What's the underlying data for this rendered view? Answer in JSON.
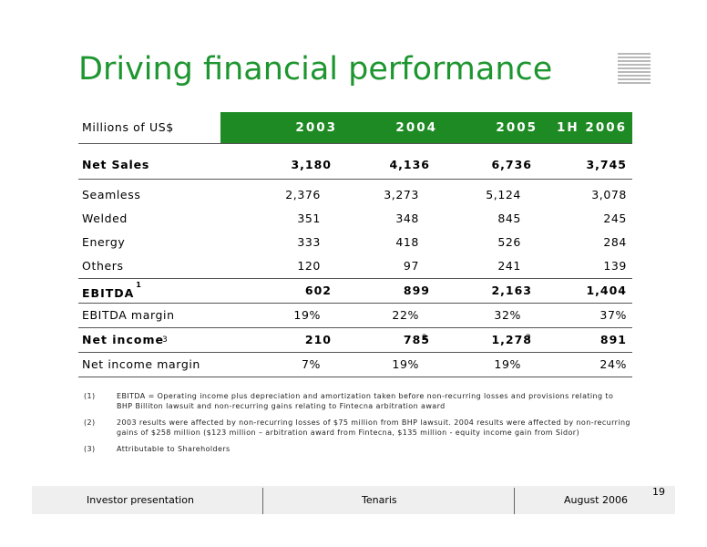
{
  "title": "Driving financial performance",
  "header": {
    "label": "Millions of US$",
    "years": [
      "2003",
      "2004",
      "2005",
      "1H 2006"
    ]
  },
  "net_sales": {
    "label": "Net Sales",
    "values": [
      "3,180",
      "4,136",
      "6,736",
      "3,745"
    ]
  },
  "segments": [
    {
      "label": "Seamless",
      "values": [
        "2,376",
        "3,273",
        "5,124",
        "3,078"
      ]
    },
    {
      "label": "Welded",
      "values": [
        "351",
        "348",
        "845",
        "245"
      ]
    },
    {
      "label": "Energy",
      "values": [
        "333",
        "418",
        "526",
        "284"
      ]
    },
    {
      "label": "Others",
      "values": [
        "120",
        "97",
        "241",
        "139"
      ]
    }
  ],
  "ebitda": {
    "label": "EBITDA",
    "sup": "1",
    "values": [
      "602",
      "899",
      "2,163",
      "1,404"
    ]
  },
  "ebitda_margin": {
    "label": "EBITDA margin",
    "values": [
      "19%",
      "22%",
      "32%",
      "37%"
    ]
  },
  "net_income": {
    "label": "Net income",
    "sup": "3",
    "values": [
      "210",
      "785",
      "1,278",
      "891"
    ],
    "value_sups": [
      "2",
      "2"
    ]
  },
  "net_income_margin": {
    "label": "Net income margin",
    "values": [
      "7%",
      "19%",
      "19%",
      "24%"
    ]
  },
  "notes": [
    {
      "num": "(1)",
      "text": "EBITDA = Operating income plus depreciation and amortization taken before non-recurring losses and provisions relating to BHP Billiton lawsuit and non-recurring gains relating to Fintecna arbitration award"
    },
    {
      "num": "(2)",
      "text": "2003 results were affected by non-recurring losses of $75 million from BHP lawsuit. 2004 results were affected by non-recurring gains of $258 million ($123 million – arbitration award from Fintecna, $135 million - equity income gain from Sidor)"
    },
    {
      "num": "(3)",
      "text": "Attributable to Shareholders"
    }
  ],
  "footer": {
    "left": "Investor presentation",
    "center": "Tenaris",
    "right": "August 2006",
    "page": "19"
  },
  "colors": {
    "accent_green": "#1e8a23",
    "title_green": "#1e9630"
  }
}
